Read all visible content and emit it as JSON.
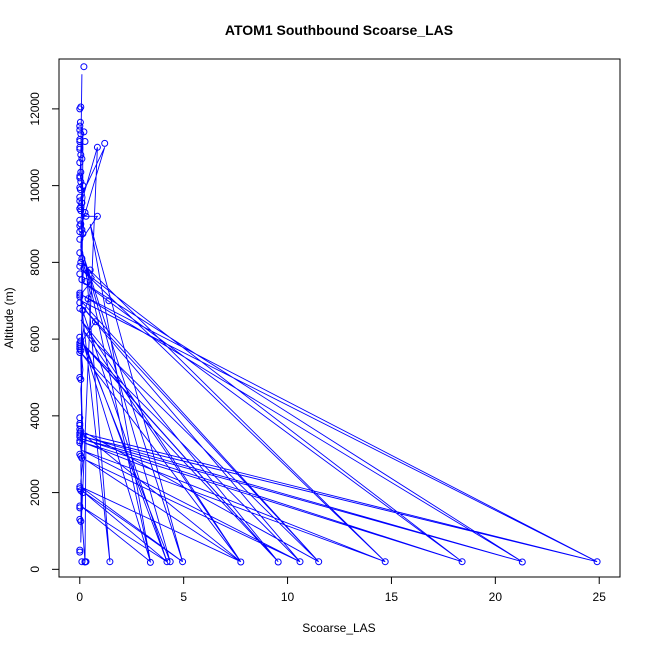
{
  "chart_data": {
    "type": "line",
    "title": "ATOM1 Southbound Scoarse_LAS",
    "xlabel": "Scoarse_LAS",
    "ylabel": "Altitude (m)",
    "xlim": [
      -1.0,
      26.0
    ],
    "ylim": [
      -200,
      13300
    ],
    "x_ticks": [
      0,
      5,
      10,
      15,
      20,
      25
    ],
    "y_ticks": [
      0,
      2000,
      4000,
      6000,
      8000,
      10000,
      12000
    ],
    "grid": false,
    "legend": "none",
    "colors": {
      "series": "#0000ff",
      "axis": "#000000",
      "background": "#ffffff"
    },
    "series": [
      {
        "marker": "open-circle",
        "x": [
          0.2,
          0.05,
          0.0,
          0.03,
          0.0,
          0.0,
          0.2,
          0.05,
          0.0,
          0.0,
          0.25,
          0.0,
          0.0,
          0.05,
          0.1,
          0.0,
          0.05,
          0.0,
          0.0,
          0.05,
          0.15,
          0.0,
          0.85,
          0.03,
          0.0,
          1.2,
          0.0,
          0.1,
          0.05,
          0.0,
          0.05,
          0.25,
          0.3,
          0.0,
          0.85,
          0.05,
          0.0,
          0.1,
          0.0,
          0.15,
          0.0,
          0.0,
          0.1,
          0.05,
          0.0,
          0.2,
          0.5,
          0.0,
          0.1,
          0.3,
          1.4,
          0.0,
          0.0,
          0.4,
          0.0,
          0.0,
          0.0,
          0.15,
          0.75,
          0.0,
          0.05,
          0.0,
          0.0,
          0.0,
          0.0,
          0.05,
          0.0,
          0.0,
          0.05,
          0.0,
          0.0,
          0.0,
          0.0,
          0.05,
          0.0,
          0.0,
          0.0,
          0.15,
          0.0,
          0.0,
          0.0,
          0.05,
          0.1,
          0.0,
          0.0,
          0.05,
          0.15,
          0.0,
          0.0,
          0.05,
          0.0,
          0.0,
          0.0,
          0.1,
          0.25,
          0.3,
          0.25,
          1.45,
          3.4,
          4.2,
          4.35,
          4.95,
          7.75,
          9.55,
          10.6,
          11.5,
          14.7,
          18.4,
          21.3,
          24.9
        ],
        "y": [
          13100,
          12050,
          12000,
          11650,
          11550,
          11450,
          11400,
          11350,
          11200,
          11150,
          11150,
          11000,
          10950,
          10800,
          10700,
          10600,
          10350,
          10250,
          10200,
          10100,
          10000,
          9950,
          11000,
          9900,
          9700,
          11100,
          9600,
          9550,
          9450,
          9400,
          9350,
          9300,
          9200,
          9100,
          9200,
          9000,
          8950,
          8850,
          8800,
          8750,
          8600,
          8250,
          8100,
          8000,
          7900,
          7850,
          7800,
          7700,
          7550,
          7500,
          7000,
          7200,
          7150,
          7050,
          7100,
          6950,
          6800,
          6750,
          6450,
          6050,
          5950,
          5900,
          5850,
          5800,
          5750,
          5700,
          5650,
          5000,
          4950,
          3950,
          3800,
          3750,
          3650,
          3600,
          3550,
          3500,
          3450,
          3400,
          3350,
          3300,
          3000,
          2950,
          2900,
          2150,
          2100,
          2050,
          2000,
          1650,
          1600,
          1250,
          500,
          450,
          1300,
          200,
          200,
          200,
          190,
          200,
          180,
          200,
          200,
          200,
          190,
          190,
          200,
          200,
          200,
          200,
          190,
          200
        ],
        "path": [
          [
            0.1,
            12900
          ],
          [
            0.05,
            10800
          ],
          [
            0.1,
            9500
          ],
          [
            0.2,
            8800
          ],
          [
            0.05,
            8300
          ],
          [
            0.5,
            7200
          ],
          [
            0.1,
            6500
          ],
          [
            0.05,
            5500
          ],
          [
            0.1,
            4200
          ],
          [
            0.15,
            3500
          ],
          [
            0.05,
            2700
          ],
          [
            0.1,
            1800
          ],
          [
            0.05,
            700
          ],
          [
            0.15,
            11400
          ],
          [
            0.0,
            10300
          ],
          [
            0.25,
            9700
          ],
          [
            0.1,
            9000
          ],
          [
            0.05,
            8400
          ],
          [
            0.2,
            7900
          ],
          [
            0.05,
            7000
          ],
          [
            0.2,
            6300
          ],
          [
            0.05,
            5800
          ],
          [
            0.15,
            5200
          ],
          [
            0.05,
            4700
          ],
          [
            0.1,
            3900
          ],
          [
            0.0,
            3300
          ],
          [
            0.15,
            2800
          ],
          [
            0.05,
            2300
          ],
          [
            0.1,
            1600
          ],
          [
            0.05,
            900
          ],
          [
            0.85,
            11000
          ],
          [
            0.1,
            9600
          ],
          [
            0.05,
            8900
          ],
          [
            1.2,
            11000
          ],
          [
            0.05,
            9700
          ],
          [
            0.1,
            9200
          ],
          [
            0.85,
            9200
          ],
          [
            0.1,
            8600
          ],
          [
            0.05,
            8100
          ],
          [
            0.7,
            7600
          ],
          [
            0.1,
            7200
          ],
          [
            0.05,
            6900
          ],
          [
            0.75,
            6450
          ],
          [
            0.05,
            5900
          ],
          [
            0.1,
            5400
          ],
          [
            0.1,
            8000
          ],
          [
            14.7,
            200
          ],
          [
            0.1,
            7800
          ],
          [
            18.4,
            200
          ],
          [
            0.1,
            7500
          ],
          [
            21.3,
            200
          ],
          [
            0.1,
            7150
          ],
          [
            24.9,
            200
          ],
          [
            0.05,
            7000
          ],
          [
            11.5,
            200
          ],
          [
            0.1,
            6850
          ],
          [
            10.6,
            200
          ],
          [
            0.1,
            5900
          ],
          [
            9.55,
            200
          ],
          [
            0.05,
            5650
          ],
          [
            7.75,
            200
          ],
          [
            0.1,
            3550
          ],
          [
            24.9,
            200
          ],
          [
            0.2,
            3450
          ],
          [
            21.3,
            200
          ],
          [
            0.1,
            3400
          ],
          [
            18.4,
            200
          ],
          [
            0.2,
            3300
          ],
          [
            14.7,
            200
          ],
          [
            0.1,
            3100
          ],
          [
            10.6,
            200
          ],
          [
            0.3,
            2850
          ],
          [
            7.75,
            200
          ],
          [
            0.05,
            2150
          ],
          [
            4.95,
            200
          ],
          [
            0.1,
            2050
          ],
          [
            4.2,
            200
          ],
          [
            0.05,
            1650
          ],
          [
            3.4,
            200
          ],
          [
            0.1,
            6000
          ],
          [
            4.35,
            200
          ],
          [
            0.1,
            8300
          ],
          [
            4.95,
            200
          ],
          [
            0.5,
            9000
          ],
          [
            3.4,
            200
          ],
          [
            0.3,
            7900
          ],
          [
            1.45,
            200
          ],
          [
            0.1,
            6800
          ],
          [
            4.2,
            200
          ],
          [
            0.3,
            5800
          ],
          [
            9.55,
            200
          ],
          [
            0.05,
            6500
          ],
          [
            7.75,
            200
          ],
          [
            0.2,
            6200
          ],
          [
            11.5,
            200
          ],
          [
            0.3,
            3550
          ],
          [
            0.25,
            200
          ],
          [
            0.1,
            1300
          ],
          [
            0.25,
            200
          ]
        ]
      }
    ]
  }
}
